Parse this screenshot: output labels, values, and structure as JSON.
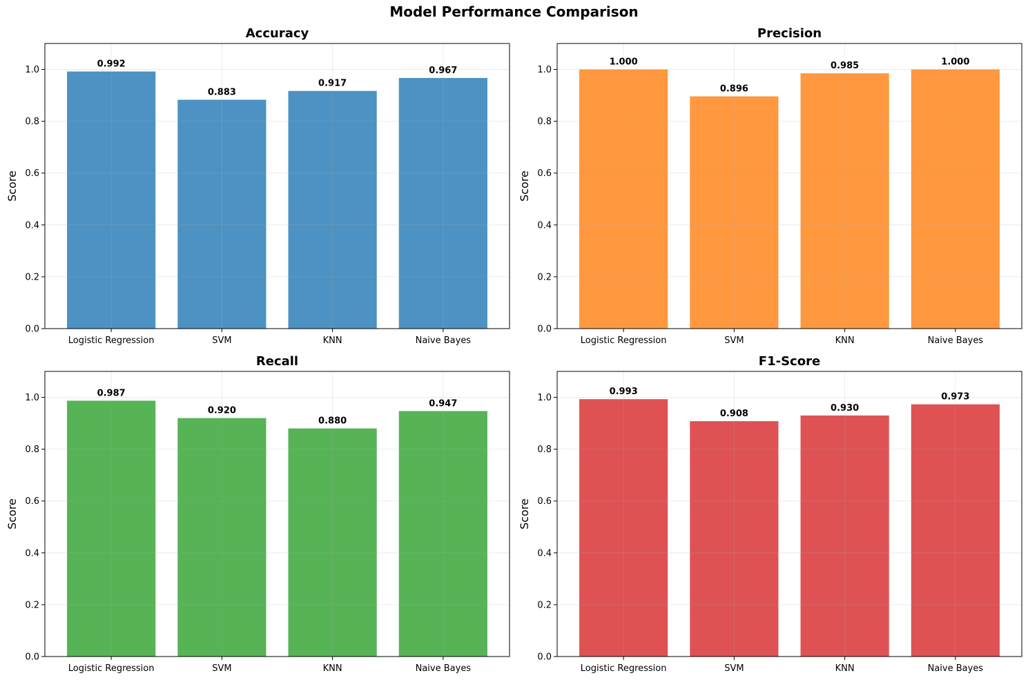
{
  "figure": {
    "title": "Model Performance Comparison"
  },
  "chart_data": [
    {
      "type": "bar",
      "title": "Accuracy",
      "xlabel": "",
      "ylabel": "Score",
      "ylim": [
        0,
        1.1
      ],
      "yticks": [
        "0.0",
        "0.2",
        "0.4",
        "0.6",
        "0.8",
        "1.0"
      ],
      "categories": [
        "Logistic Regression",
        "SVM",
        "KNN",
        "Naive Bayes"
      ],
      "values": [
        0.992,
        0.883,
        0.917,
        0.967
      ],
      "value_labels": [
        "0.992",
        "0.883",
        "0.917",
        "0.967"
      ],
      "color": "#4c92c3",
      "grid": true
    },
    {
      "type": "bar",
      "title": "Precision",
      "xlabel": "",
      "ylabel": "Score",
      "ylim": [
        0,
        1.1
      ],
      "yticks": [
        "0.0",
        "0.2",
        "0.4",
        "0.6",
        "0.8",
        "1.0"
      ],
      "categories": [
        "Logistic Regression",
        "SVM",
        "KNN",
        "Naive Bayes"
      ],
      "values": [
        1.0,
        0.896,
        0.985,
        1.0
      ],
      "value_labels": [
        "1.000",
        "0.896",
        "0.985",
        "1.000"
      ],
      "color": "#ff983e",
      "grid": true
    },
    {
      "type": "bar",
      "title": "Recall",
      "xlabel": "",
      "ylabel": "Score",
      "ylim": [
        0,
        1.1
      ],
      "yticks": [
        "0.0",
        "0.2",
        "0.4",
        "0.6",
        "0.8",
        "1.0"
      ],
      "categories": [
        "Logistic Regression",
        "SVM",
        "KNN",
        "Naive Bayes"
      ],
      "values": [
        0.987,
        0.92,
        0.88,
        0.947
      ],
      "value_labels": [
        "0.987",
        "0.920",
        "0.880",
        "0.947"
      ],
      "color": "#56b356",
      "grid": true
    },
    {
      "type": "bar",
      "title": "F1-Score",
      "xlabel": "",
      "ylabel": "Score",
      "ylim": [
        0,
        1.1
      ],
      "yticks": [
        "0.0",
        "0.2",
        "0.4",
        "0.6",
        "0.8",
        "1.0"
      ],
      "categories": [
        "Logistic Regression",
        "SVM",
        "KNN",
        "Naive Bayes"
      ],
      "values": [
        0.993,
        0.908,
        0.93,
        0.973
      ],
      "value_labels": [
        "0.993",
        "0.908",
        "0.930",
        "0.973"
      ],
      "color": "#de5254",
      "grid": true
    }
  ]
}
